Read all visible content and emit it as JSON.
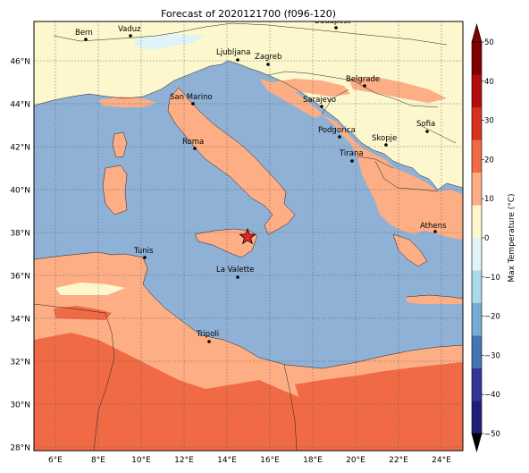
{
  "title": "Forecast of 2020121700 (f096-120)",
  "colorbar": {
    "label": "Max Temperature (°C)",
    "ticks": [
      "50",
      "40",
      "30",
      "20",
      "10",
      "0",
      "−10",
      "−20",
      "−30",
      "−40",
      "−50"
    ],
    "colors_top_to_bottom": [
      "#7f0000",
      "#b30c0c",
      "#d7301f",
      "#f06b45",
      "#fdae85",
      "#fff6cc",
      "#e0f3f8",
      "#abd9e9",
      "#74add1",
      "#4575b4",
      "#313695",
      "#1f1f7a"
    ]
  },
  "axes": {
    "y_ticks": [
      "46°N",
      "44°N",
      "42°N",
      "40°N",
      "38°N",
      "36°N",
      "34°N",
      "32°N",
      "30°N",
      "28°N"
    ],
    "x_ticks": [
      "6°E",
      "8°E",
      "10°E",
      "12°E",
      "14°E",
      "16°E",
      "18°E",
      "20°E",
      "22°E",
      "24°E"
    ]
  },
  "colors": {
    "sea": "#8fb1d6",
    "cold_land": "#fdf7cd",
    "warm_land": "#fdae85",
    "hot_land": "#f06b45",
    "ice_blue": "#e0f3f8"
  },
  "cities": [
    {
      "name": "Bern"
    },
    {
      "name": "Vaduz"
    },
    {
      "name": "Budapest"
    },
    {
      "name": "Ljubljana"
    },
    {
      "name": "Zagreb"
    },
    {
      "name": "Belgrade"
    },
    {
      "name": "San Marino"
    },
    {
      "name": "Sarajevo"
    },
    {
      "name": "Sofia"
    },
    {
      "name": "Podgorica"
    },
    {
      "name": "Skopje"
    },
    {
      "name": "Roma"
    },
    {
      "name": "Tirana"
    },
    {
      "name": "Athens"
    },
    {
      "name": "Tunis"
    },
    {
      "name": "La Valette"
    },
    {
      "name": "Tripoli"
    }
  ],
  "marker": {
    "symbol": "star",
    "color": "#e8242b"
  }
}
